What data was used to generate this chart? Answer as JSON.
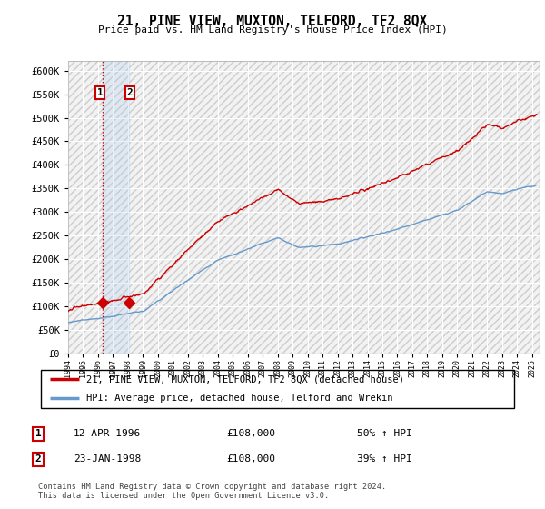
{
  "title": "21, PINE VIEW, MUXTON, TELFORD, TF2 8QX",
  "subtitle": "Price paid vs. HM Land Registry's House Price Index (HPI)",
  "ylabel_ticks": [
    "£0",
    "£50K",
    "£100K",
    "£150K",
    "£200K",
    "£250K",
    "£300K",
    "£350K",
    "£400K",
    "£450K",
    "£500K",
    "£550K",
    "£600K"
  ],
  "ytick_values": [
    0,
    50000,
    100000,
    150000,
    200000,
    250000,
    300000,
    350000,
    400000,
    450000,
    500000,
    550000,
    600000
  ],
  "sale1_date": 1996.28,
  "sale1_price": 108000,
  "sale2_date": 1998.07,
  "sale2_price": 108000,
  "legend_line1": "21, PINE VIEW, MUXTON, TELFORD, TF2 8QX (detached house)",
  "legend_line2": "HPI: Average price, detached house, Telford and Wrekin",
  "line_color_red": "#cc0000",
  "line_color_blue": "#6699cc",
  "xmin": 1994,
  "xmax": 2025
}
